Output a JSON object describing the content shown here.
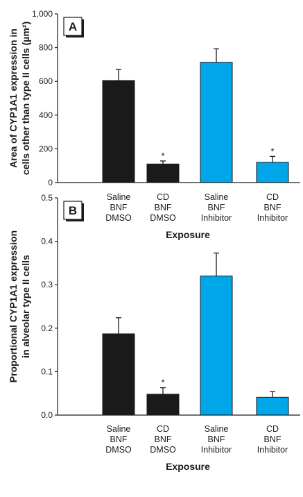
{
  "colors": {
    "dmso": "#1a1a1a",
    "inhibitor": "#00a7e8",
    "axis": "#1a1a1a"
  },
  "chart_data": [
    {
      "type": "bar",
      "panel_label": "A",
      "categories": [
        [
          "Saline",
          "BNF",
          "DMSO"
        ],
        [
          "CD",
          "BNF",
          "DMSO"
        ],
        [
          "Saline",
          "BNF",
          "Inhibitor"
        ],
        [
          "CD",
          "BNF",
          "Inhibitor"
        ]
      ],
      "values": [
        605,
        110,
        713,
        120
      ],
      "errors": [
        65,
        18,
        80,
        35
      ],
      "significant": [
        false,
        true,
        false,
        true
      ],
      "significance_mark": "*",
      "xlabel": "Exposure",
      "ylabel": [
        "Area of CYP1A1 expression in",
        "cells other than type II cells (µm²)"
      ],
      "ylim": [
        0,
        1000
      ],
      "yticks": [
        0,
        200,
        400,
        600,
        800,
        1000
      ],
      "ytick_labels": [
        "0",
        "200",
        "400",
        "600",
        "800",
        "1,000"
      ]
    },
    {
      "type": "bar",
      "panel_label": "B",
      "categories": [
        [
          "Saline",
          "BNF",
          "DMSO"
        ],
        [
          "CD",
          "BNF",
          "DMSO"
        ],
        [
          "Saline",
          "BNF",
          "Inhibitor"
        ],
        [
          "CD",
          "BNF",
          "Inhibitor"
        ]
      ],
      "values": [
        0.187,
        0.048,
        0.32,
        0.041
      ],
      "errors": [
        0.037,
        0.015,
        0.053,
        0.013
      ],
      "significant": [
        false,
        true,
        false,
        false
      ],
      "significance_mark": "*",
      "xlabel": "Exposure",
      "ylabel": [
        "Proportional CYP1A1 expression",
        "in alveolar type II cells"
      ],
      "ylim": [
        0,
        0.5
      ],
      "yticks": [
        0,
        0.1,
        0.2,
        0.3,
        0.4,
        0.5
      ],
      "ytick_labels": [
        "0.0",
        "0.1",
        "0.2",
        "0.3",
        "0.4",
        "0.5"
      ]
    }
  ]
}
